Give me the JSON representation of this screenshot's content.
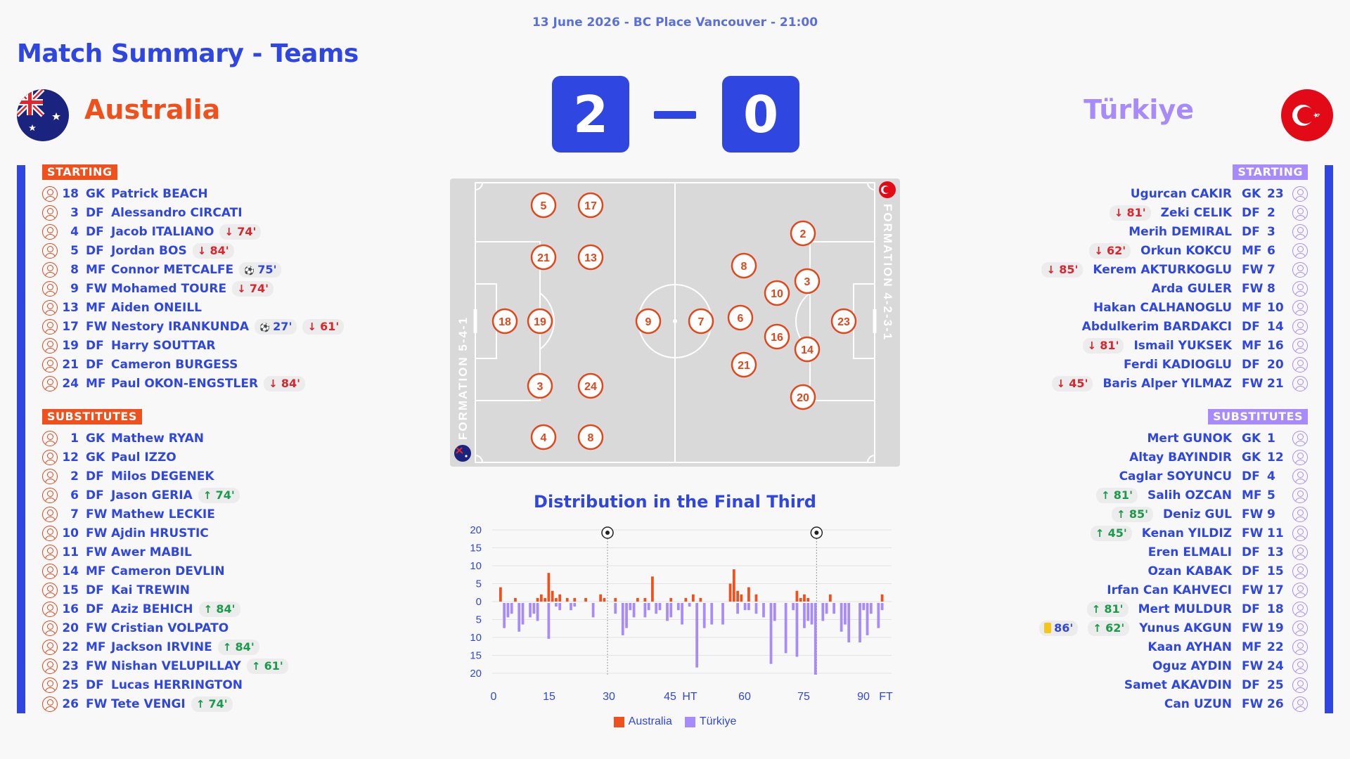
{
  "header": {
    "meta": "13 June 2026 - BC Place Vancouver - 21:00",
    "title": "Match Summary - Teams"
  },
  "colors": {
    "primary": "#2f46e0",
    "australia": "#f0501c",
    "turkiye": "#a78bfa",
    "sub_out": "#d8262f",
    "sub_in": "#1a9a4a"
  },
  "home": {
    "name": "Australia",
    "score": "2",
    "formation": "FORMATION 5-4-1",
    "starting_label": "STARTING",
    "subs_label": "SUBSTITUTES",
    "starting": [
      {
        "num": "18",
        "pos": "GK",
        "name": "Patrick BEACH",
        "events": []
      },
      {
        "num": "3",
        "pos": "DF",
        "name": "Alessandro CIRCATI",
        "events": []
      },
      {
        "num": "4",
        "pos": "DF",
        "name": "Jacob ITALIANO",
        "events": [
          {
            "type": "out",
            "icon": "↓",
            "text": "74'"
          }
        ]
      },
      {
        "num": "5",
        "pos": "DF",
        "name": "Jordan BOS",
        "events": [
          {
            "type": "out",
            "icon": "↓",
            "text": "84'"
          }
        ]
      },
      {
        "num": "8",
        "pos": "MF",
        "name": "Connor METCALFE",
        "events": [
          {
            "type": "goal",
            "icon": "⚽",
            "text": "75'"
          }
        ]
      },
      {
        "num": "9",
        "pos": "FW",
        "name": "Mohamed TOURE",
        "events": [
          {
            "type": "out",
            "icon": "↓",
            "text": "74'"
          }
        ]
      },
      {
        "num": "13",
        "pos": "MF",
        "name": "Aiden ONEILL",
        "events": []
      },
      {
        "num": "17",
        "pos": "FW",
        "name": "Nestory IRANKUNDA",
        "events": [
          {
            "type": "goal",
            "icon": "⚽",
            "text": "27'"
          },
          {
            "type": "out",
            "icon": "↓",
            "text": "61'"
          }
        ]
      },
      {
        "num": "19",
        "pos": "DF",
        "name": "Harry SOUTTAR",
        "events": []
      },
      {
        "num": "21",
        "pos": "DF",
        "name": "Cameron BURGESS",
        "events": []
      },
      {
        "num": "24",
        "pos": "MF",
        "name": "Paul OKON-ENGSTLER",
        "events": [
          {
            "type": "out",
            "icon": "↓",
            "text": "84'"
          }
        ]
      }
    ],
    "subs": [
      {
        "num": "1",
        "pos": "GK",
        "name": "Mathew RYAN",
        "events": []
      },
      {
        "num": "12",
        "pos": "GK",
        "name": "Paul IZZO",
        "events": []
      },
      {
        "num": "2",
        "pos": "DF",
        "name": "Milos DEGENEK",
        "events": []
      },
      {
        "num": "6",
        "pos": "DF",
        "name": "Jason GERIA",
        "events": [
          {
            "type": "in",
            "icon": "↑",
            "text": "74'"
          }
        ]
      },
      {
        "num": "7",
        "pos": "FW",
        "name": "Mathew LECKIE",
        "events": []
      },
      {
        "num": "10",
        "pos": "FW",
        "name": "Ajdin HRUSTIC",
        "events": []
      },
      {
        "num": "11",
        "pos": "FW",
        "name": "Awer MABIL",
        "events": []
      },
      {
        "num": "14",
        "pos": "MF",
        "name": "Cameron DEVLIN",
        "events": []
      },
      {
        "num": "15",
        "pos": "DF",
        "name": "Kai TREWIN",
        "events": []
      },
      {
        "num": "16",
        "pos": "DF",
        "name": "Aziz BEHICH",
        "events": [
          {
            "type": "in",
            "icon": "↑",
            "text": "84'"
          }
        ]
      },
      {
        "num": "20",
        "pos": "FW",
        "name": "Cristian VOLPATO",
        "events": []
      },
      {
        "num": "22",
        "pos": "MF",
        "name": "Jackson IRVINE",
        "events": [
          {
            "type": "in",
            "icon": "↑",
            "text": "84'"
          }
        ]
      },
      {
        "num": "23",
        "pos": "FW",
        "name": "Nishan VELUPILLAY",
        "events": [
          {
            "type": "in",
            "icon": "↑",
            "text": "61'"
          }
        ]
      },
      {
        "num": "25",
        "pos": "DF",
        "name": "Lucas HERRINGTON",
        "events": []
      },
      {
        "num": "26",
        "pos": "FW",
        "name": "Tete VENGI",
        "events": [
          {
            "type": "in",
            "icon": "↑",
            "text": "74'"
          }
        ]
      }
    ]
  },
  "away": {
    "name": "Türkiye",
    "score": "0",
    "formation": "FORMATION 4-2-3-1",
    "starting_label": "STARTING",
    "subs_label": "SUBSTITUTES",
    "starting": [
      {
        "num": "23",
        "pos": "GK",
        "name": "Ugurcan CAKIR",
        "events": []
      },
      {
        "num": "2",
        "pos": "DF",
        "name": "Zeki CELIK",
        "events": [
          {
            "type": "out",
            "icon": "↓",
            "text": "81'"
          }
        ]
      },
      {
        "num": "3",
        "pos": "DF",
        "name": "Merih DEMIRAL",
        "events": []
      },
      {
        "num": "6",
        "pos": "MF",
        "name": "Orkun KOKCU",
        "events": [
          {
            "type": "out",
            "icon": "↓",
            "text": "62'"
          }
        ]
      },
      {
        "num": "7",
        "pos": "FW",
        "name": "Kerem AKTURKOGLU",
        "events": [
          {
            "type": "out",
            "icon": "↓",
            "text": "85'"
          }
        ]
      },
      {
        "num": "8",
        "pos": "FW",
        "name": "Arda GULER",
        "events": []
      },
      {
        "num": "10",
        "pos": "MF",
        "name": "Hakan CALHANOGLU",
        "events": []
      },
      {
        "num": "14",
        "pos": "DF",
        "name": "Abdulkerim BARDAKCI",
        "events": []
      },
      {
        "num": "16",
        "pos": "MF",
        "name": "Ismail YUKSEK",
        "events": [
          {
            "type": "out",
            "icon": "↓",
            "text": "81'"
          }
        ]
      },
      {
        "num": "20",
        "pos": "DF",
        "name": "Ferdi KADIOGLU",
        "events": []
      },
      {
        "num": "21",
        "pos": "FW",
        "name": "Baris Alper YILMAZ",
        "events": [
          {
            "type": "out",
            "icon": "↓",
            "text": "45'"
          }
        ]
      }
    ],
    "subs": [
      {
        "num": "1",
        "pos": "GK",
        "name": "Mert GUNOK",
        "events": []
      },
      {
        "num": "12",
        "pos": "GK",
        "name": "Altay BAYINDIR",
        "events": []
      },
      {
        "num": "4",
        "pos": "DF",
        "name": "Caglar SOYUNCU",
        "events": []
      },
      {
        "num": "5",
        "pos": "MF",
        "name": "Salih OZCAN",
        "events": [
          {
            "type": "in",
            "icon": "↑",
            "text": "81'"
          }
        ]
      },
      {
        "num": "9",
        "pos": "FW",
        "name": "Deniz GUL",
        "events": [
          {
            "type": "in",
            "icon": "↑",
            "text": "85'"
          }
        ]
      },
      {
        "num": "11",
        "pos": "FW",
        "name": "Kenan YILDIZ",
        "events": [
          {
            "type": "in",
            "icon": "↑",
            "text": "45'"
          }
        ]
      },
      {
        "num": "13",
        "pos": "DF",
        "name": "Eren ELMALI",
        "events": []
      },
      {
        "num": "15",
        "pos": "DF",
        "name": "Ozan KABAK",
        "events": []
      },
      {
        "num": "17",
        "pos": "FW",
        "name": "Irfan Can KAHVECI",
        "events": []
      },
      {
        "num": "18",
        "pos": "DF",
        "name": "Mert MULDUR",
        "events": [
          {
            "type": "in",
            "icon": "↑",
            "text": "81'"
          }
        ]
      },
      {
        "num": "19",
        "pos": "FW",
        "name": "Yunus AKGUN",
        "events": [
          {
            "type": "yc",
            "icon": "card",
            "text": "86'"
          },
          {
            "type": "in",
            "icon": "↑",
            "text": "62'"
          }
        ]
      },
      {
        "num": "22",
        "pos": "MF",
        "name": "Kaan AYHAN",
        "events": []
      },
      {
        "num": "24",
        "pos": "FW",
        "name": "Oguz AYDIN",
        "events": []
      },
      {
        "num": "25",
        "pos": "DF",
        "name": "Samet AKAVDIN",
        "events": []
      },
      {
        "num": "26",
        "pos": "FW",
        "name": "Can UZUN",
        "events": []
      }
    ]
  },
  "lineup": {
    "home": [
      "5",
      "17",
      "21",
      "13",
      "18",
      "19",
      "9",
      "3",
      "24",
      "4",
      "8"
    ],
    "away": [
      "2",
      "8",
      "3",
      "10",
      "7",
      "6",
      "23",
      "16",
      "14",
      "21",
      "20"
    ]
  },
  "chart_data": {
    "type": "bar",
    "title": "Distribution in the Final Third",
    "x_ticks": [
      "0",
      "15",
      "30",
      "45",
      "HT",
      "60",
      "75",
      "90",
      "FT"
    ],
    "y_ticks": [
      "20",
      "15",
      "10",
      "5",
      "0",
      "5",
      "10",
      "15",
      "20"
    ],
    "ylim": [
      -20,
      20
    ],
    "goal_minutes": [
      27,
      75
    ],
    "series": [
      {
        "name": "Australia",
        "color": "#f0501c",
        "values": [
          4,
          0,
          0,
          0,
          1,
          0,
          0,
          0,
          0,
          0,
          1,
          2,
          1,
          8,
          3,
          1,
          2,
          0,
          1,
          0,
          1,
          0,
          0,
          1,
          0,
          0,
          0,
          2,
          1,
          0,
          0,
          1,
          0,
          0,
          0,
          0,
          0,
          1,
          0,
          1,
          0,
          7,
          0,
          0,
          0,
          0,
          1,
          0,
          0,
          0,
          1,
          0,
          2,
          0,
          1,
          0,
          0,
          0,
          0,
          0,
          0,
          0,
          5,
          9,
          3,
          2,
          0,
          4,
          0,
          2,
          0,
          0,
          0,
          0,
          0,
          0,
          0,
          0,
          0,
          0,
          3,
          1,
          2,
          1,
          0,
          0,
          0,
          0,
          0,
          2,
          0,
          0,
          0,
          0,
          0,
          0,
          0,
          0,
          0,
          0,
          0,
          0,
          0,
          2
        ]
      },
      {
        "name": "Türkiye",
        "color": "#a78bfa",
        "values": [
          0,
          7,
          4,
          3,
          0,
          8,
          6,
          0,
          4,
          3,
          5,
          0,
          0,
          10,
          0,
          1,
          2,
          0,
          0,
          2,
          1,
          0,
          0,
          0,
          0,
          4,
          0,
          0,
          0,
          0,
          0,
          3,
          0,
          9,
          7,
          2,
          4,
          0,
          0,
          4,
          2,
          0,
          3,
          2,
          0,
          5,
          4,
          0,
          2,
          6,
          0,
          1,
          0,
          18,
          0,
          7,
          0,
          6,
          0,
          0,
          6,
          0,
          0,
          0,
          3,
          0,
          2,
          2,
          0,
          3,
          0,
          4,
          0,
          17,
          5,
          0,
          0,
          14,
          0,
          2,
          15,
          0,
          7,
          5,
          6,
          20,
          0,
          5,
          3,
          0,
          3,
          0,
          8,
          6,
          11,
          0,
          0,
          11,
          2,
          9,
          3,
          0,
          7,
          2
        ]
      }
    ]
  }
}
